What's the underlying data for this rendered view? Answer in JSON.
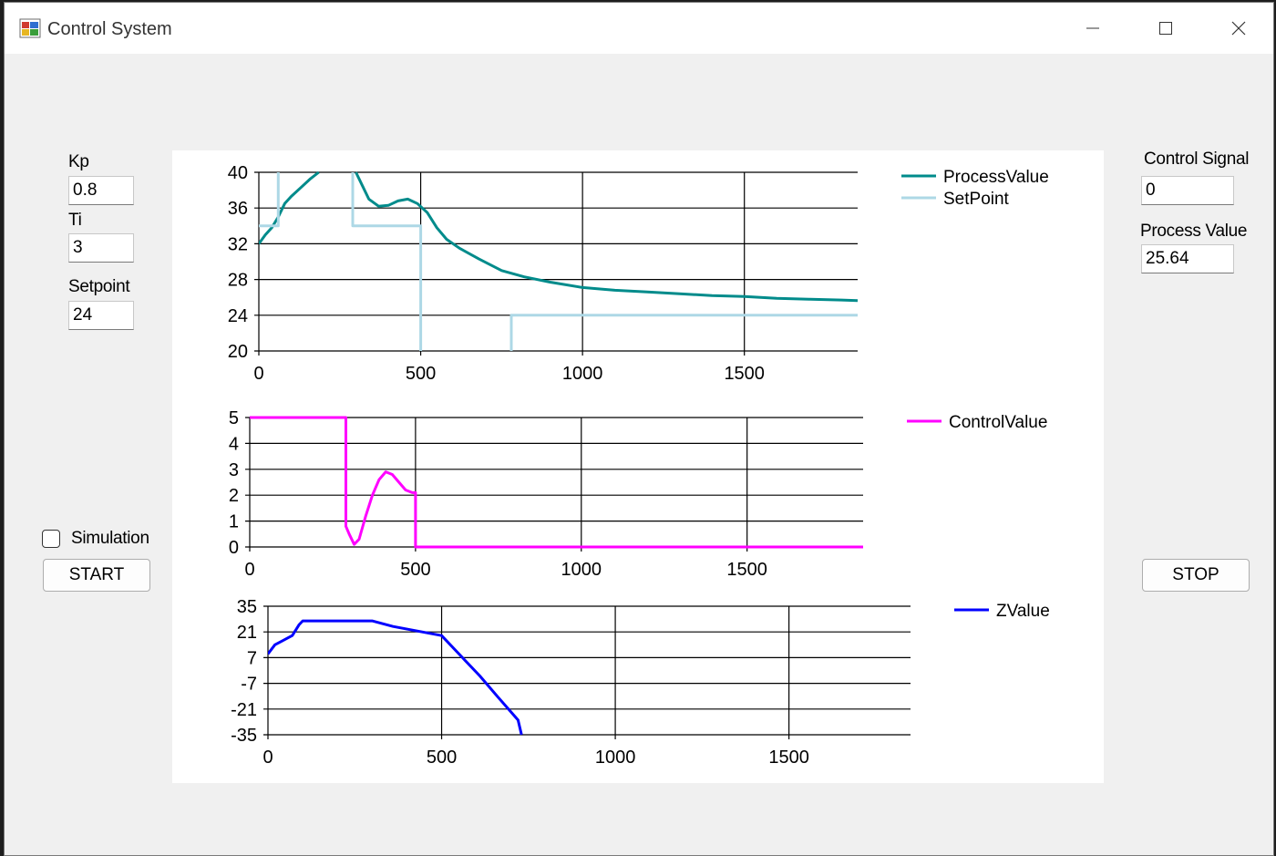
{
  "window": {
    "title": "Control System"
  },
  "inputs": {
    "kp": {
      "label": "Kp",
      "value": "0.8"
    },
    "ti": {
      "label": "Ti",
      "value": "3"
    },
    "setpoint": {
      "label": "Setpoint",
      "value": "24"
    },
    "control_signal": {
      "label": "Control Signal",
      "value": "0"
    },
    "process_value": {
      "label": "Process Value",
      "value": "25.64"
    }
  },
  "simulation": {
    "label": "Simulation",
    "checked": false
  },
  "buttons": {
    "start": "START",
    "stop": "STOP"
  },
  "colors": {
    "process": "#008b8b",
    "setpoint": "#add8e6",
    "control": "#ff00ff",
    "z": "#0000ff"
  },
  "chart_data": [
    {
      "type": "line",
      "xlim": [
        0,
        1850
      ],
      "ylim": [
        20,
        40
      ],
      "xticks": [
        0,
        500,
        1000,
        1500
      ],
      "yticks": [
        20,
        24,
        28,
        32,
        36,
        40
      ],
      "grid": true,
      "legend": "top-right",
      "series": [
        {
          "name": "ProcessValue",
          "color": "#008b8b",
          "points": [
            [
              0,
              32
            ],
            [
              20,
              33
            ],
            [
              40,
              33.8
            ],
            [
              60,
              35
            ],
            [
              80,
              36.5
            ],
            [
              100,
              37.3
            ],
            [
              130,
              38.3
            ],
            [
              160,
              39.3
            ],
            [
              185,
              40
            ],
            [
              null,
              null
            ],
            [
              300,
              40
            ],
            [
              320,
              38.5
            ],
            [
              340,
              37
            ],
            [
              370,
              36.2
            ],
            [
              400,
              36.3
            ],
            [
              430,
              36.8
            ],
            [
              460,
              37
            ],
            [
              490,
              36.5
            ],
            [
              520,
              35.5
            ],
            [
              550,
              33.8
            ],
            [
              580,
              32.5
            ],
            [
              620,
              31.5
            ],
            [
              680,
              30.3
            ],
            [
              750,
              29
            ],
            [
              820,
              28.3
            ],
            [
              900,
              27.7
            ],
            [
              1000,
              27.1
            ],
            [
              1100,
              26.8
            ],
            [
              1200,
              26.6
            ],
            [
              1300,
              26.4
            ],
            [
              1400,
              26.2
            ],
            [
              1500,
              26.1
            ],
            [
              1600,
              25.9
            ],
            [
              1700,
              25.8
            ],
            [
              1800,
              25.7
            ],
            [
              1850,
              25.64
            ]
          ]
        },
        {
          "name": "SetPoint",
          "color": "#add8e6",
          "points": [
            [
              0,
              34
            ],
            [
              60,
              34
            ],
            [
              60,
              40
            ],
            [
              null,
              null
            ],
            [
              290,
              40
            ],
            [
              290,
              34
            ],
            [
              500,
              34
            ],
            [
              500,
              20
            ],
            [
              null,
              null
            ],
            [
              780,
              20
            ],
            [
              780,
              24
            ],
            [
              1850,
              24
            ]
          ]
        }
      ]
    },
    {
      "type": "line",
      "xlim": [
        0,
        1850
      ],
      "ylim": [
        0,
        5
      ],
      "xticks": [
        0,
        500,
        1000,
        1500
      ],
      "yticks": [
        0,
        1,
        2,
        3,
        4,
        5
      ],
      "grid": true,
      "legend": "top-right",
      "series": [
        {
          "name": "ControlValue",
          "color": "#ff00ff",
          "points": [
            [
              0,
              5
            ],
            [
              290,
              5
            ],
            [
              290,
              0.8
            ],
            [
              300,
              0.5
            ],
            [
              315,
              0.1
            ],
            [
              330,
              0.3
            ],
            [
              350,
              1.2
            ],
            [
              370,
              2
            ],
            [
              390,
              2.6
            ],
            [
              410,
              2.9
            ],
            [
              430,
              2.8
            ],
            [
              450,
              2.5
            ],
            [
              470,
              2.2
            ],
            [
              490,
              2.1
            ],
            [
              500,
              2.1
            ],
            [
              500,
              0
            ],
            [
              1850,
              0
            ]
          ]
        }
      ]
    },
    {
      "type": "line",
      "xlim": [
        0,
        1850
      ],
      "ylim": [
        -35,
        35
      ],
      "xticks": [
        0,
        500,
        1000,
        1500
      ],
      "yticks": [
        -35,
        -21,
        -7,
        7,
        21,
        35
      ],
      "grid": true,
      "legend": "top-right",
      "series": [
        {
          "name": "ZValue",
          "color": "#0000ff",
          "points": [
            [
              0,
              9
            ],
            [
              20,
              14
            ],
            [
              40,
              16
            ],
            [
              60,
              18
            ],
            [
              70,
              19
            ],
            [
              90,
              25
            ],
            [
              100,
              27
            ],
            [
              300,
              27
            ],
            [
              360,
              24
            ],
            [
              500,
              19
            ],
            [
              560,
              7
            ],
            [
              610,
              -3
            ],
            [
              660,
              -14
            ],
            [
              720,
              -27
            ],
            [
              730,
              -35
            ]
          ]
        }
      ]
    }
  ]
}
